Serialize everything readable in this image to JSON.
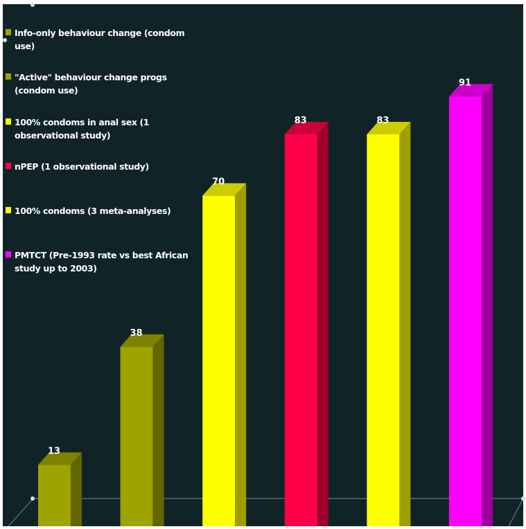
{
  "chart_data": {
    "type": "bar",
    "categories": [
      "Info-only behaviour change (condom use)",
      "\"Active\" behaviour change progs (condom use)",
      "100% condoms in anal sex (1 observational study)",
      "nPEP (1 observational study)",
      "100% condoms (3 meta-analyses)",
      "PMTCT (Pre-1993 rate vs best African study up to 2003)"
    ],
    "values": [
      13,
      38,
      70,
      83,
      83,
      91
    ],
    "colors": [
      "#9fa300",
      "#9fa300",
      "#ffff00",
      "#ff0048",
      "#ffff00",
      "#ff00ff"
    ],
    "ylim": [
      0,
      100
    ],
    "legend_position": "top-left",
    "grid": false,
    "background": "#102428"
  }
}
